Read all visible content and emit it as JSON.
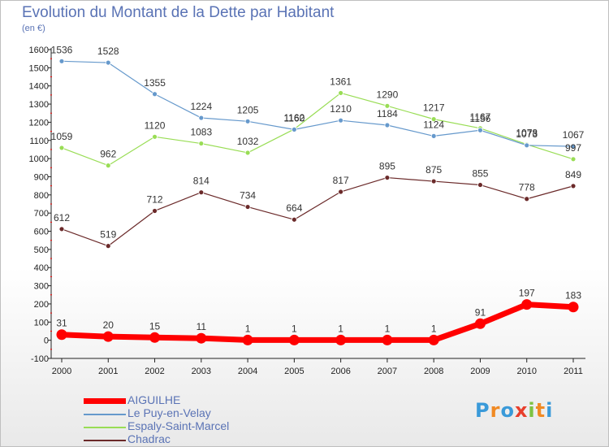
{
  "title": "Evolution du Montant de la Dette par Habitant",
  "unit": "(en €)",
  "logo": {
    "letters": [
      "P",
      "r",
      "o",
      "x",
      "i",
      "t",
      "i"
    ],
    "colors": [
      "#3a9ad9",
      "#f08a24",
      "#3a9ad9",
      "#e83f2c",
      "#7dc242",
      "#f08a24",
      "#3a9ad9"
    ]
  },
  "chart_data": {
    "type": "line",
    "x": [
      "2000",
      "2001",
      "2002",
      "2003",
      "2004",
      "2005",
      "2006",
      "2007",
      "2008",
      "2009",
      "2010",
      "2011"
    ],
    "ylim": [
      -100,
      1600
    ],
    "yticks": [
      -100,
      0,
      100,
      200,
      300,
      400,
      500,
      600,
      700,
      800,
      900,
      1000,
      1100,
      1200,
      1300,
      1400,
      1500,
      1600
    ],
    "grid": false,
    "legend_position": "bottom-left",
    "series": [
      {
        "name": "AIGUILHE",
        "color": "#ff0000",
        "values": [
          31,
          20,
          15,
          11,
          1,
          1,
          1,
          1,
          1,
          91,
          197,
          183
        ],
        "labels": [
          "31",
          "20",
          "15",
          "11",
          "1",
          "1",
          "1",
          "1",
          "1",
          "91",
          "197",
          "183"
        ]
      },
      {
        "name": "Le Puy-en-Velay",
        "color": "#6699cc",
        "values": [
          1536,
          1528,
          1355,
          1224,
          1205,
          1160,
          1210,
          1184,
          1124,
          1156,
          1073,
          1067
        ],
        "labels": [
          "1536",
          "1528",
          "1355",
          "1224",
          "1205",
          "1160",
          "1210",
          "1184",
          "1124",
          "1156",
          "1073",
          "1067"
        ]
      },
      {
        "name": "Espaly-Saint-Marcel",
        "color": "#99dd55",
        "values": [
          1059,
          962,
          1120,
          1083,
          1032,
          1162,
          1361,
          1290,
          1217,
          1167,
          1078,
          997
        ],
        "labels": [
          "1059",
          "962",
          "1120",
          "1083",
          "1032",
          "1162",
          "1361",
          "1290",
          "1217",
          "1167",
          "1078",
          "997"
        ]
      },
      {
        "name": "Chadrac",
        "color": "#6b2a2a",
        "values": [
          612,
          519,
          712,
          814,
          734,
          664,
          817,
          895,
          875,
          855,
          778,
          849
        ],
        "labels": [
          "612",
          "519",
          "712",
          "814",
          "734",
          "664",
          "817",
          "895",
          "875",
          "855",
          "778",
          "849"
        ]
      }
    ]
  }
}
